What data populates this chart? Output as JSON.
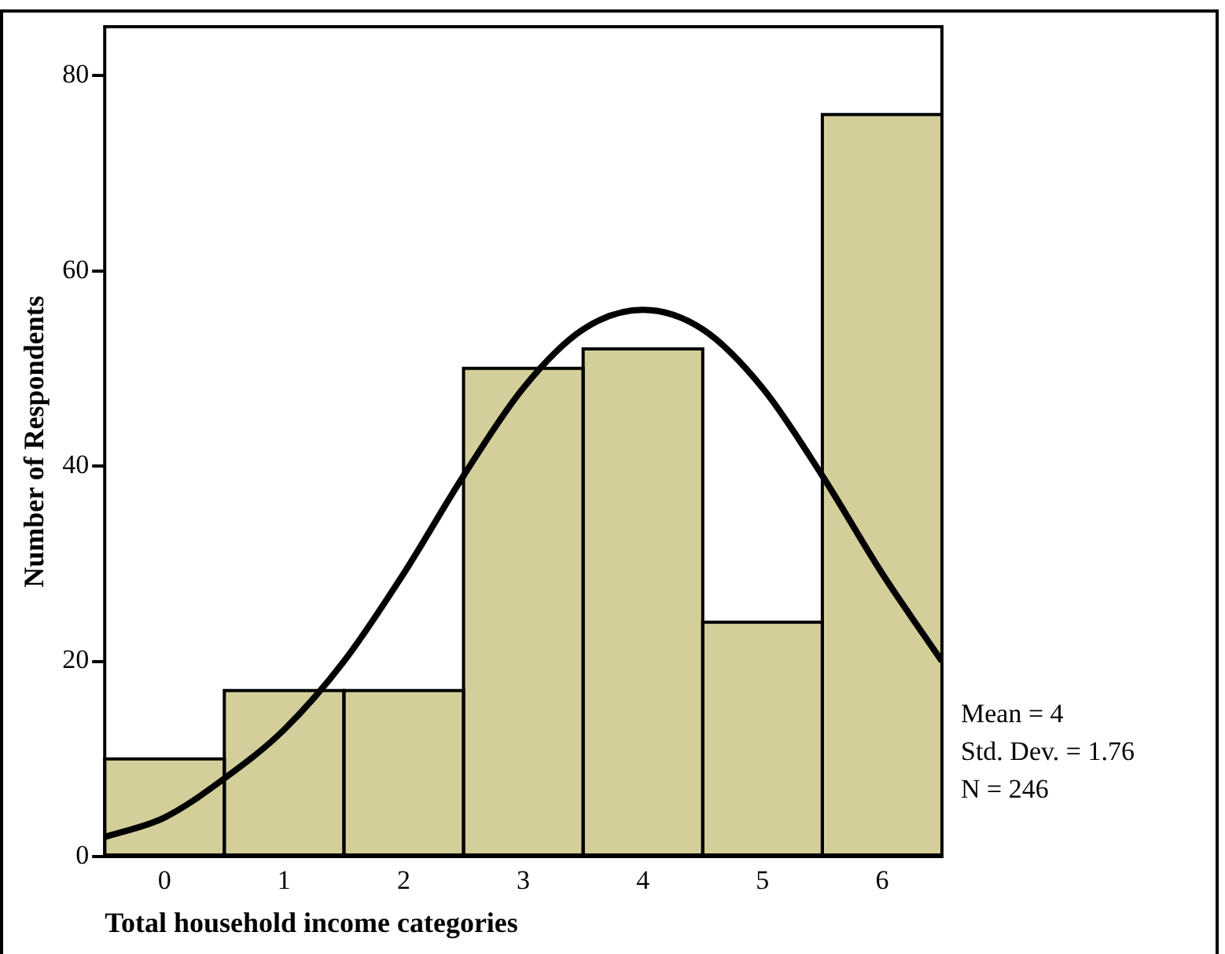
{
  "chart_data": {
    "type": "histogram",
    "xlabel": "Total household income categories",
    "ylabel": "Number of Respondents",
    "bins": [
      -0.5,
      0.5,
      1.5,
      2.5,
      3.5,
      4.5,
      5.5,
      6.5
    ],
    "values": [
      10,
      17,
      17,
      50,
      52,
      24,
      76
    ],
    "color": "#d4cf9a",
    "series": [
      {
        "type": "line",
        "color": "#000000",
        "x": [
          -0.5,
          0,
          0.5,
          1,
          1.5,
          2,
          2.5,
          3,
          3.5,
          4,
          4.5,
          5,
          5.5,
          6,
          6.5
        ],
        "values": [
          2,
          4,
          8,
          13,
          20,
          29,
          39,
          48,
          54,
          56,
          54,
          48,
          39,
          29,
          20
        ]
      }
    ],
    "xlim": [
      -0.5,
      6.5
    ],
    "xticks": [
      0,
      1,
      2,
      3,
      4,
      5,
      6
    ],
    "ylim": [
      0,
      85
    ],
    "yticks": [
      0,
      20,
      40,
      60,
      80
    ],
    "grid": false,
    "legend": false,
    "marker": "none",
    "line_style": "solid",
    "annotations": [
      "Mean = 4",
      "Std. Dev. = 1.76",
      "N = 246"
    ]
  }
}
